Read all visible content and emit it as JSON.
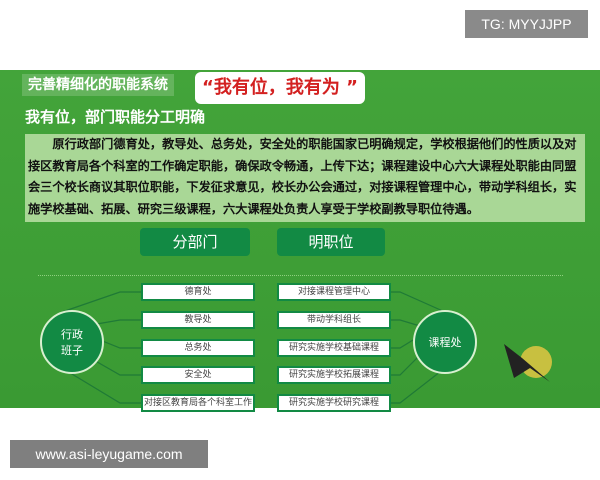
{
  "badge": "TG: MYYJJPP",
  "poster": {
    "title": "完善精细化的职能系统",
    "quote": "“我有位，我有为 ”",
    "subtitle": "我有位，部门职能分工明确",
    "paragraph": "原行政部门德育处，教导处、总务处，安全处的职能国家已明确规定，学校根据他们的性质以及对接区教育局各个科室的工作确定职能，确保政令畅通，上传下达；课程建设中心六大课程处职能由同盟会三个校长商议其职位职能，下发征求意见，校长办公会通过，对接课程管理中心，带动学科组长，实施学校基础、拓展、研究三级课程，六大课程处负责人享受于学校副教导职位待遇。",
    "header_left": "分部门",
    "header_right": "明职位",
    "left_circle": "行政班子",
    "right_circle": "课程处",
    "left_items": [
      "德育处",
      "教导处",
      "总务处",
      "安全处",
      "对接区教育局各个科室工作"
    ],
    "right_items": [
      "对接课程管理中心",
      "带动学科组长",
      "研究实施学校基础课程",
      "研究实施学校拓展课程",
      "研究实施学校研究课程"
    ],
    "colors": {
      "background": "#43a43a",
      "dark_green": "#128a44",
      "quote": "#d32020"
    }
  },
  "watermark": "www.asi-leyugame.com"
}
